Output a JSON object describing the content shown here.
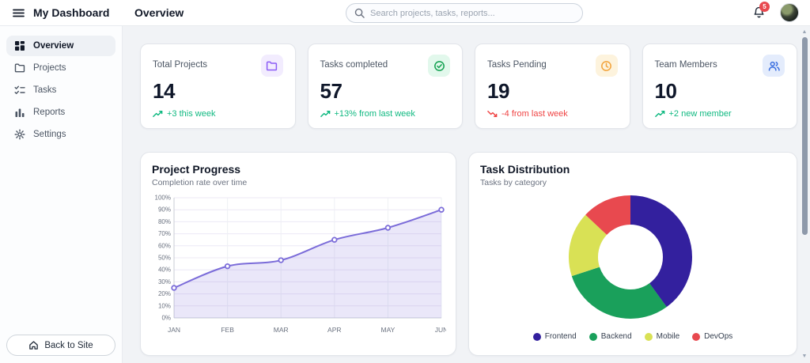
{
  "topbar": {
    "title": "My Dashboard",
    "page_title": "Overview",
    "search": {
      "placeholder": "Search projects, tasks, reports..."
    },
    "notifications_count": "5"
  },
  "sidebar": {
    "items": [
      {
        "label": "Overview",
        "icon": "dashboard-grid",
        "active": true
      },
      {
        "label": "Projects",
        "icon": "folder",
        "active": false
      },
      {
        "label": "Tasks",
        "icon": "checklist",
        "active": false
      },
      {
        "label": "Reports",
        "icon": "bar-chart",
        "active": false
      },
      {
        "label": "Settings",
        "icon": "gear",
        "active": false
      }
    ],
    "back_button": "Back to Site"
  },
  "stats": [
    {
      "label": "Total Projects",
      "value": "14",
      "trend": "+3 this week",
      "trend_direction": "up",
      "icon": "folder",
      "icon_color": "#8b5cf6",
      "icon_bg": "#f2ecfe"
    },
    {
      "label": "Tasks completed",
      "value": "57",
      "trend": "+13% from last week",
      "trend_direction": "up",
      "icon": "check-circle",
      "icon_color": "#12a150",
      "icon_bg": "#e2f8ec"
    },
    {
      "label": "Tasks Pending",
      "value": "19",
      "trend": "-4 from last week",
      "trend_direction": "down",
      "icon": "clock",
      "icon_color": "#f2a33c",
      "icon_bg": "#fdf3dd"
    },
    {
      "label": "Team Members",
      "value": "10",
      "trend": "+2 new member",
      "trend_direction": "up",
      "icon": "users",
      "icon_color": "#3b6fe0",
      "icon_bg": "#e4ecfc"
    }
  ],
  "colors": {
    "trend_up": "#10b981",
    "trend_down": "#ef4444",
    "axis": "#c9cdd6",
    "grid_h": "#ece8f6",
    "grid_v": "#eef0f4",
    "tick_text": "#6b7280"
  },
  "chart_data": [
    {
      "type": "line",
      "title": "Project Progress",
      "subtitle": "Completion rate over time",
      "x": [
        "JAN",
        "FEB",
        "MAR",
        "APR",
        "MAY",
        "JUN"
      ],
      "values": [
        25,
        43,
        48,
        65,
        75,
        90
      ],
      "ylim": [
        0,
        100
      ],
      "ytick_step": 10,
      "ytick_suffix": "%",
      "grid": true,
      "area": true,
      "line_color": "#7b6cd9",
      "fill_opacity": 0.16
    },
    {
      "type": "pie",
      "donut": true,
      "title": "Task Distribution",
      "subtitle": "Tasks by category",
      "legend_position": "bottom",
      "segments": [
        {
          "label": "Frontend",
          "value": 40,
          "color": "#33209e"
        },
        {
          "label": "Backend",
          "value": 30,
          "color": "#1aa05b"
        },
        {
          "label": "Mobile",
          "value": 17,
          "color": "#d9e155"
        },
        {
          "label": "DevOps",
          "value": 13,
          "color": "#e8494f"
        }
      ]
    }
  ]
}
